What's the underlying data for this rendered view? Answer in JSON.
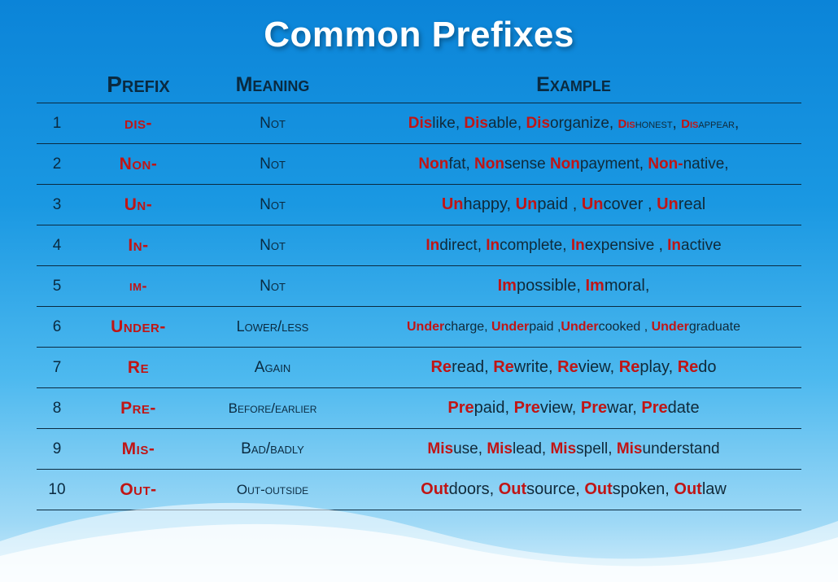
{
  "title": "Common Prefixes",
  "headers": {
    "prefix": "Prefix",
    "meaning": "Meaning",
    "example": "Example"
  },
  "rows": [
    {
      "num": "1",
      "prefix": "dis-",
      "meaning": "Not",
      "ex_fontsize": 19,
      "examples": [
        {
          "pre": "Dis",
          "root": "like"
        },
        {
          "pre": "Dis",
          "root": "able"
        },
        {
          "pre": "Dis",
          "root": "organize"
        },
        {
          "pre": "Dis",
          "root": "honest",
          "small": true
        },
        {
          "pre": "Dis",
          "root": "appear",
          "small": true
        }
      ],
      "trailing_comma": true
    },
    {
      "num": "2",
      "prefix": "Non-",
      "meaning": "Not",
      "ex_fontsize": 19,
      "examples": [
        {
          "pre": "Non",
          "root": "fat"
        },
        {
          "pre": "Non",
          "root": "sense",
          "no_comma": true
        },
        {
          "pre": "Non",
          "root": "payment"
        },
        {
          "pre": "Non-",
          "root": "native"
        }
      ],
      "trailing_comma": true
    },
    {
      "num": "3",
      "prefix": "Un-",
      "meaning": "Not",
      "ex_fontsize": 20,
      "examples": [
        {
          "pre": "Un",
          "root": "happy"
        },
        {
          "pre": "Un",
          "root": "paid ",
          "spaced": true
        },
        {
          "pre": "Un",
          "root": "cover ",
          "spaced": true
        },
        {
          "pre": "Un",
          "root": "real"
        }
      ]
    },
    {
      "num": "4",
      "prefix": "In-",
      "meaning": "Not",
      "ex_fontsize": 19,
      "examples": [
        {
          "pre": "In",
          "root": "direct"
        },
        {
          "pre": "In",
          "root": "complete"
        },
        {
          "pre": "In",
          "root": "expensive ",
          "spaced": true
        },
        {
          "pre": "In",
          "root": "active"
        }
      ]
    },
    {
      "num": "5",
      "prefix": "im-",
      "meaning": "Not",
      "prefix_fontsize": 18,
      "ex_fontsize": 20,
      "examples": [
        {
          "pre": "Im",
          "root": "possible"
        },
        {
          "pre": "Im",
          "root": "moral"
        }
      ],
      "trailing_comma": true
    },
    {
      "num": "6",
      "prefix": "Under-",
      "meaning": "Lower/less",
      "mean_fontsize": 18,
      "ex_fontsize": 16,
      "examples": [
        {
          "pre": "Under",
          "root": "charge"
        },
        {
          "pre": "Under",
          "root": "paid ",
          "no_space_after_comma": true
        },
        {
          "pre": "Under",
          "root": "cooked ",
          "spaced": true
        },
        {
          "pre": "Under",
          "root": "graduate"
        }
      ]
    },
    {
      "num": "7",
      "prefix": "Re",
      "meaning": "Again",
      "ex_fontsize": 20,
      "examples": [
        {
          "pre": "Re",
          "root": "read"
        },
        {
          "pre": "Re",
          "root": "write"
        },
        {
          "pre": "Re",
          "root": "view"
        },
        {
          "pre": "Re",
          "root": "play"
        },
        {
          "pre": "Re",
          "root": "do"
        }
      ]
    },
    {
      "num": "8",
      "prefix": "Pre-",
      "meaning": "Before/earlier",
      "mean_fontsize": 17,
      "ex_fontsize": 20,
      "examples": [
        {
          "pre": "Pre",
          "root": "paid"
        },
        {
          "pre": "Pre",
          "root": "view"
        },
        {
          "pre": "Pre",
          "root": "war"
        },
        {
          "pre": "Pre",
          "root": "date"
        }
      ]
    },
    {
      "num": "9",
      "prefix": "Mis-",
      "meaning": "Bad/badly",
      "ex_fontsize": 19,
      "examples": [
        {
          "pre": "Mis",
          "root": "use"
        },
        {
          "pre": "Mis",
          "root": "lead"
        },
        {
          "pre": "Mis",
          "root": "spell"
        },
        {
          "pre": "Mis",
          "root": "understand"
        }
      ]
    },
    {
      "num": "10",
      "prefix": "Out-",
      "meaning": "Out-outside",
      "mean_fontsize": 17,
      "ex_fontsize": 20,
      "examples": [
        {
          "pre": "Out",
          "root": "doors"
        },
        {
          "pre": "Out",
          "root": "source"
        },
        {
          "pre": "Out",
          "root": "spoken"
        },
        {
          "pre": "Out",
          "root": "law"
        }
      ]
    }
  ],
  "colors": {
    "red": "#c01515",
    "dark": "#0a2a40",
    "border": "#0a2a40"
  }
}
